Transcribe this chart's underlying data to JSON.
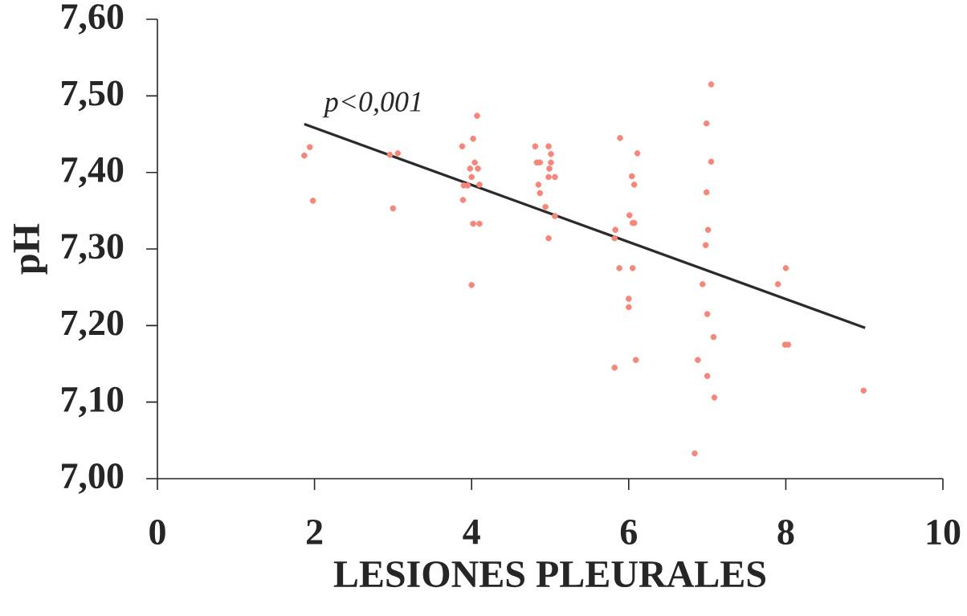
{
  "chart_data": {
    "type": "scatter",
    "xlabel": "LESIONES PLEURALES",
    "ylabel": "pH",
    "xlim": [
      0,
      10
    ],
    "ylim": [
      7.0,
      7.6
    ],
    "xticks": [
      0,
      2,
      4,
      6,
      8,
      10
    ],
    "yticks": [
      {
        "value": 7.0,
        "label": "7,00"
      },
      {
        "value": 7.1,
        "label": "7,10"
      },
      {
        "value": 7.2,
        "label": "7,20"
      },
      {
        "value": 7.3,
        "label": "7,30"
      },
      {
        "value": 7.4,
        "label": "7,40"
      },
      {
        "value": 7.5,
        "label": "7,50"
      },
      {
        "value": 7.6,
        "label": "7,60"
      }
    ],
    "series": [
      {
        "color": "#f4877a",
        "marker": "circle",
        "x": [
          1.94,
          1.87,
          1.98,
          2.96,
          3.06,
          3.0,
          4.07,
          4.02,
          3.88,
          4.04,
          3.98,
          4.08,
          4.0,
          3.9,
          3.95,
          4.1,
          3.89,
          4.02,
          4.1,
          4.0,
          4.81,
          4.98,
          5.01,
          4.83,
          4.87,
          5.01,
          4.99,
          4.98,
          5.06,
          4.85,
          4.87,
          4.94,
          5.06,
          4.98,
          5.89,
          6.11,
          6.04,
          6.07,
          6.01,
          6.05,
          6.07,
          5.83,
          5.82,
          5.88,
          6.05,
          6.0,
          6.0,
          6.09,
          5.82,
          7.05,
          6.99,
          7.05,
          6.99,
          7.01,
          6.98,
          6.94,
          7.0,
          7.08,
          6.88,
          7.0,
          7.09,
          6.84,
          8.0,
          7.9,
          7.99,
          8.03,
          8.99
        ],
        "values": [
          7.433,
          7.422,
          7.363,
          7.423,
          7.425,
          7.353,
          7.474,
          7.444,
          7.434,
          7.413,
          7.405,
          7.405,
          7.394,
          7.383,
          7.383,
          7.384,
          7.364,
          7.333,
          7.333,
          7.253,
          7.434,
          7.434,
          7.424,
          7.413,
          7.413,
          7.413,
          7.405,
          7.394,
          7.394,
          7.384,
          7.373,
          7.355,
          7.343,
          7.314,
          7.445,
          7.425,
          7.395,
          7.384,
          7.344,
          7.334,
          7.334,
          7.325,
          7.314,
          7.275,
          7.275,
          7.235,
          7.224,
          7.155,
          7.145,
          7.515,
          7.464,
          7.414,
          7.374,
          7.325,
          7.305,
          7.254,
          7.215,
          7.185,
          7.155,
          7.134,
          7.106,
          7.033,
          7.275,
          7.254,
          7.175,
          7.175,
          7.115
        ]
      },
      {
        "type": "line",
        "color": "#2b2b2b",
        "marker": "none",
        "line_style": "solid",
        "x": [
          1.87,
          9.01
        ],
        "values": [
          7.463,
          7.197
        ]
      }
    ],
    "annotations": [
      "p<0,001"
    ]
  }
}
